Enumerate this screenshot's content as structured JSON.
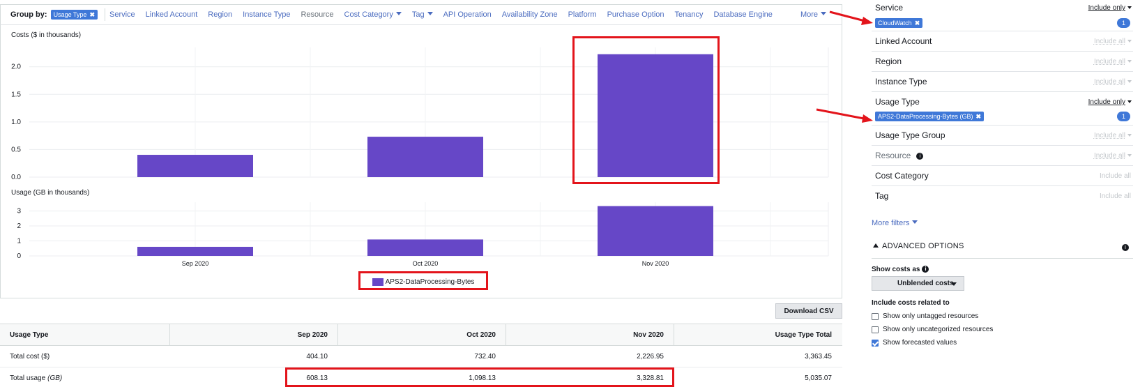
{
  "groupby": {
    "label": "Group by:",
    "selected_chip": "Usage Type",
    "items": [
      {
        "label": "Service",
        "muted": false,
        "dropdown": false
      },
      {
        "label": "Linked Account",
        "muted": false,
        "dropdown": false
      },
      {
        "label": "Region",
        "muted": false,
        "dropdown": false
      },
      {
        "label": "Instance Type",
        "muted": false,
        "dropdown": false
      },
      {
        "label": "Resource",
        "muted": true,
        "dropdown": false
      },
      {
        "label": "Cost Category",
        "muted": false,
        "dropdown": true
      },
      {
        "label": "Tag",
        "muted": false,
        "dropdown": true
      },
      {
        "label": "API Operation",
        "muted": false,
        "dropdown": false
      },
      {
        "label": "Availability Zone",
        "muted": false,
        "dropdown": false
      },
      {
        "label": "Platform",
        "muted": false,
        "dropdown": false
      },
      {
        "label": "Purchase Option",
        "muted": false,
        "dropdown": false
      },
      {
        "label": "Tenancy",
        "muted": false,
        "dropdown": false
      },
      {
        "label": "Database Engine",
        "muted": false,
        "dropdown": false
      }
    ],
    "more": "More"
  },
  "chart_data": [
    {
      "type": "bar",
      "title": "Costs ($ in thousands)",
      "categories": [
        "Sep 2020",
        "Oct 2020",
        "Nov 2020"
      ],
      "series": [
        {
          "name": "APS2-DataProcessing-Bytes",
          "values": [
            0.404,
            0.732,
            2.227
          ]
        }
      ],
      "yticks": [
        "0.0",
        "0.5",
        "1.0",
        "1.5",
        "2.0"
      ],
      "ylim": [
        0,
        2.3
      ],
      "grid": true
    },
    {
      "type": "bar",
      "title": "Usage (GB in thousands)",
      "categories": [
        "Sep 2020",
        "Oct 2020",
        "Nov 2020"
      ],
      "series": [
        {
          "name": "APS2-DataProcessing-Bytes",
          "values": [
            0.608,
            1.098,
            3.329
          ]
        }
      ],
      "yticks": [
        "0",
        "1",
        "2",
        "3"
      ],
      "ylim": [
        0,
        3.4
      ],
      "grid": true
    }
  ],
  "legend": {
    "label": "APS2-DataProcessing-Bytes",
    "color": "#6647c7"
  },
  "download_label": "Download CSV",
  "table": {
    "headers": [
      "Usage Type",
      "Sep 2020",
      "Oct 2020",
      "Nov 2020",
      "Usage Type Total"
    ],
    "rows": [
      {
        "label": "Total cost ($)",
        "unit": "",
        "values": [
          "404.10",
          "732.40",
          "2,226.95",
          "3,363.45"
        ]
      },
      {
        "label": "Total usage",
        "unit": "(GB)",
        "values": [
          "608.13",
          "1,098.13",
          "3,328.81",
          "5,035.07"
        ]
      }
    ]
  },
  "filters": {
    "service": {
      "label": "Service",
      "mode": "Include only",
      "chip": "CloudWatch",
      "count": "1"
    },
    "linked_account": {
      "label": "Linked Account",
      "mode": "Include all"
    },
    "region": {
      "label": "Region",
      "mode": "Include all"
    },
    "instance_type": {
      "label": "Instance Type",
      "mode": "Include all"
    },
    "usage_type": {
      "label": "Usage Type",
      "mode": "Include only",
      "chip": "APS2-DataProcessing-Bytes (GB)",
      "count": "1"
    },
    "usage_type_group": {
      "label": "Usage Type Group",
      "mode": "Include all"
    },
    "resource": {
      "label": "Resource",
      "mode": "Include all"
    },
    "cost_category": {
      "label": "Cost Category",
      "mode": "Include all"
    },
    "tag": {
      "label": "Tag",
      "mode": "Include all"
    },
    "more_filters": "More filters"
  },
  "advanced": {
    "title": "ADVANCED OPTIONS",
    "show_costs_label": "Show costs as",
    "show_costs_value": "Unblended costs",
    "include_label": "Include costs related to",
    "options": [
      {
        "label": "Show only untagged resources",
        "checked": false
      },
      {
        "label": "Show only uncategorized resources",
        "checked": false
      },
      {
        "label": "Show forecasted values",
        "checked": true
      }
    ]
  },
  "colors": {
    "accent": "#3f78d8",
    "bar": "#6647c7",
    "highlight": "#e3141b",
    "link": "#4a6bbf"
  }
}
